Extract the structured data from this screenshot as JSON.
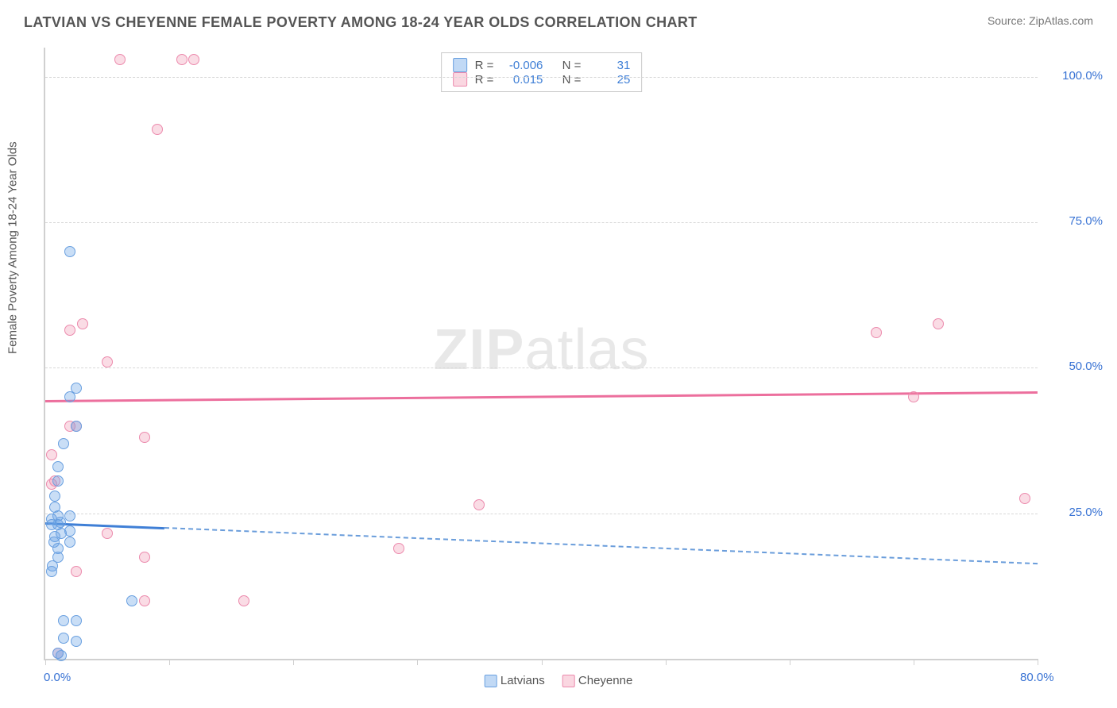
{
  "title": "LATVIAN VS CHEYENNE FEMALE POVERTY AMONG 18-24 YEAR OLDS CORRELATION CHART",
  "source": "Source: ZipAtlas.com",
  "y_axis_label": "Female Poverty Among 18-24 Year Olds",
  "watermark_bold": "ZIP",
  "watermark_rest": "atlas",
  "chart": {
    "type": "scatter",
    "background_color": "#ffffff",
    "grid_color": "#d8d8d8",
    "axis_color": "#d0d0d0",
    "x_range": [
      0,
      80
    ],
    "y_range": [
      0,
      105
    ],
    "x_ticks": [
      0,
      10,
      20,
      30,
      40,
      50,
      60,
      70,
      80
    ],
    "x_tick_labels": {
      "0": "0.0%",
      "80": "80.0%"
    },
    "y_gridlines": [
      25,
      50,
      75,
      100
    ],
    "y_tick_labels": {
      "25": "25.0%",
      "50": "50.0%",
      "75": "75.0%",
      "100": "100.0%"
    },
    "label_color": "#3973d4",
    "label_fontsize": 15,
    "series": [
      {
        "name": "Latvians",
        "color_fill": "rgba(100,160,230,0.35)",
        "color_stroke": "#6aa0e0",
        "marker_size": 14,
        "R": "-0.006",
        "N": "31",
        "trend": {
          "y_left": 23.5,
          "y_right": 16.5,
          "solid_fraction": 0.12,
          "color": "#3f7fd6",
          "width": 3,
          "dash_color": "#6a9ddb"
        },
        "points": [
          [
            2,
            70
          ],
          [
            2.5,
            46.5
          ],
          [
            2,
            45
          ],
          [
            2.5,
            40
          ],
          [
            1.5,
            37
          ],
          [
            1,
            33
          ],
          [
            1,
            30.5
          ],
          [
            0.8,
            28
          ],
          [
            0.8,
            26
          ],
          [
            2,
            24.5
          ],
          [
            1,
            24.5
          ],
          [
            0.5,
            24
          ],
          [
            1.2,
            23.5
          ],
          [
            1,
            23
          ],
          [
            0.5,
            23
          ],
          [
            2,
            22
          ],
          [
            1.3,
            21.5
          ],
          [
            0.8,
            21
          ],
          [
            0.7,
            20
          ],
          [
            2,
            20
          ],
          [
            1,
            19
          ],
          [
            1,
            17.5
          ],
          [
            0.6,
            16
          ],
          [
            0.5,
            15
          ],
          [
            7,
            10
          ],
          [
            1.5,
            6.5
          ],
          [
            2.5,
            6.5
          ],
          [
            1.5,
            3.5
          ],
          [
            2.5,
            3
          ],
          [
            1,
            1
          ],
          [
            1.3,
            0.5
          ]
        ]
      },
      {
        "name": "Cheyenne",
        "color_fill": "rgba(240,140,170,0.30)",
        "color_stroke": "#ec8aad",
        "marker_size": 14,
        "R": "0.015",
        "N": "25",
        "trend": {
          "y_left": 44.5,
          "y_right": 46,
          "color": "#ec6f9d",
          "width": 3
        },
        "points": [
          [
            6,
            103
          ],
          [
            11,
            103
          ],
          [
            12,
            103
          ],
          [
            9,
            91
          ],
          [
            72,
            57.5
          ],
          [
            67,
            56
          ],
          [
            2,
            56.5
          ],
          [
            3,
            57.5
          ],
          [
            5,
            51
          ],
          [
            70,
            45
          ],
          [
            2,
            40
          ],
          [
            2.5,
            40
          ],
          [
            8,
            38
          ],
          [
            0.5,
            35
          ],
          [
            0.8,
            30.5
          ],
          [
            0.5,
            30
          ],
          [
            79,
            27.5
          ],
          [
            35,
            26.5
          ],
          [
            5,
            21.5
          ],
          [
            28.5,
            19
          ],
          [
            8,
            17.5
          ],
          [
            2.5,
            15
          ],
          [
            8,
            10
          ],
          [
            16,
            10
          ],
          [
            1,
            1
          ]
        ]
      }
    ]
  },
  "legend_top": {
    "rows": [
      {
        "swatch": "blue",
        "R_label": "R =",
        "R_val": "-0.006",
        "N_label": "N =",
        "N_val": "31"
      },
      {
        "swatch": "pink",
        "R_label": "R =",
        "R_val": "0.015",
        "N_label": "N =",
        "N_val": "25"
      }
    ]
  },
  "legend_bottom": {
    "items": [
      {
        "swatch": "blue",
        "label": "Latvians"
      },
      {
        "swatch": "pink",
        "label": "Cheyenne"
      }
    ]
  }
}
